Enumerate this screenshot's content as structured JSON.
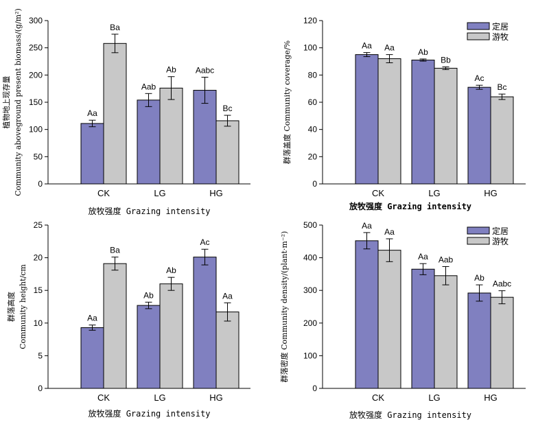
{
  "colors": {
    "series1": "#8080c0",
    "series2": "#c8c8c8",
    "axis": "#000000"
  },
  "legend": [
    "定居",
    "游牧"
  ],
  "chart_data": [
    {
      "type": "bar",
      "categories": [
        "CK",
        "LG",
        "HG"
      ],
      "xlabel": "放牧强度 Grazing intensity",
      "ylabel_lines": [
        "植物地上现存量",
        "Community aboveground present biomass/(g/m²)"
      ],
      "ylim": [
        0,
        300
      ],
      "yticks": [
        "0",
        "50",
        "100",
        "150",
        "200",
        "250",
        "300"
      ],
      "legend": false,
      "series": [
        {
          "name": "定居",
          "values": [
            111,
            154,
            172
          ],
          "errors": [
            6,
            12,
            24
          ],
          "labels": [
            "Aa",
            "Aab",
            "Aabc"
          ]
        },
        {
          "name": "游牧",
          "values": [
            258,
            176,
            116
          ],
          "errors": [
            17,
            21,
            10
          ],
          "labels": [
            "Ba",
            "Ab",
            "Bc"
          ]
        }
      ]
    },
    {
      "type": "bar",
      "categories": [
        "CK",
        "LG",
        "HG"
      ],
      "xlabel": "放牧强度 Grazing intensity",
      "xlabel_bold": true,
      "ylabel_lines": [
        "群落盖度 Community coverage/%"
      ],
      "ylim": [
        0,
        120
      ],
      "yticks": [
        "0",
        "20",
        "40",
        "60",
        "80",
        "100",
        "120"
      ],
      "legend": true,
      "series": [
        {
          "name": "定居",
          "values": [
            95,
            91,
            71
          ],
          "errors": [
            1.5,
            0.8,
            1.5
          ],
          "labels": [
            "Aa",
            "Ab",
            "Ac"
          ]
        },
        {
          "name": "游牧",
          "values": [
            92,
            85,
            64
          ],
          "errors": [
            3,
            1,
            2
          ],
          "labels": [
            "Aa",
            "Bb",
            "Bc"
          ]
        }
      ]
    },
    {
      "type": "bar",
      "categories": [
        "CK",
        "LG",
        "HG"
      ],
      "xlabel": "放牧强度 Grazing intensity",
      "ylabel_lines": [
        "群落高度",
        "Community height/cm"
      ],
      "ylim": [
        0,
        25
      ],
      "yticks": [
        "0",
        "5",
        "10",
        "15",
        "20",
        "25"
      ],
      "legend": false,
      "series": [
        {
          "name": "定居",
          "values": [
            9.3,
            12.7,
            20.1
          ],
          "errors": [
            0.4,
            0.5,
            1.2
          ],
          "labels": [
            "Aa",
            "Ab",
            "Ac"
          ]
        },
        {
          "name": "游牧",
          "values": [
            19.1,
            16.0,
            11.7
          ],
          "errors": [
            1.0,
            1.0,
            1.4
          ],
          "labels": [
            "Ba",
            "Ab",
            "Aa"
          ]
        }
      ]
    },
    {
      "type": "bar",
      "categories": [
        "CK",
        "LG",
        "HG"
      ],
      "xlabel": "放牧强度 Grazing intensity",
      "ylabel_lines": [
        "群落密度 Community density/(plant·m⁻²)"
      ],
      "ylim": [
        0,
        500
      ],
      "yticks": [
        "0",
        "100",
        "200",
        "300",
        "400",
        "500"
      ],
      "legend": true,
      "series": [
        {
          "name": "定居",
          "values": [
            452,
            365,
            292
          ],
          "errors": [
            25,
            17,
            25
          ],
          "labels": [
            "Aa",
            "Aa",
            "Ab"
          ]
        },
        {
          "name": "游牧",
          "values": [
            423,
            345,
            279
          ],
          "errors": [
            35,
            28,
            20
          ],
          "labels": [
            "Aa",
            "Aab",
            "Aabc"
          ]
        }
      ]
    }
  ]
}
